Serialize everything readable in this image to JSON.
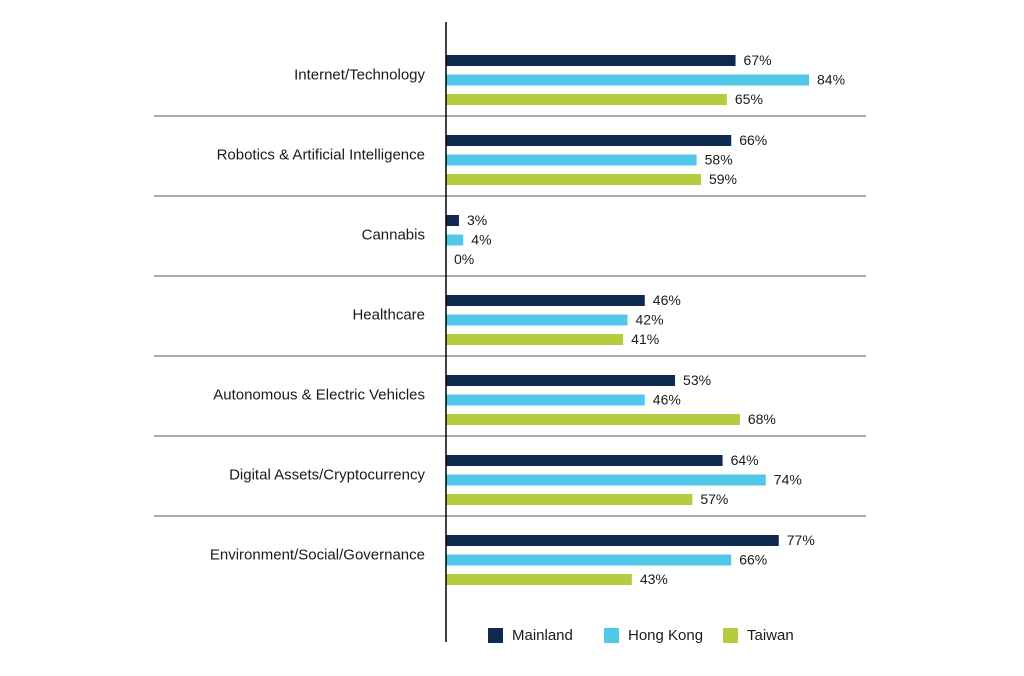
{
  "chart_data": {
    "type": "bar",
    "orientation": "horizontal",
    "categories": [
      "Internet/Technology",
      "Robotics & Artificial Intelligence",
      "Cannabis",
      "Healthcare",
      "Autonomous & Electric Vehicles",
      "Digital Assets/Cryptocurrency",
      "Environment/Social/Governance"
    ],
    "series": [
      {
        "name": "Mainland",
        "color": "#0f2a4e",
        "values": [
          67,
          66,
          3,
          46,
          53,
          64,
          77
        ]
      },
      {
        "name": "Hong Kong",
        "color": "#52c8e8",
        "values": [
          84,
          58,
          4,
          42,
          46,
          74,
          66
        ]
      },
      {
        "name": "Taiwan",
        "color": "#b5cc3e",
        "values": [
          65,
          59,
          0,
          41,
          68,
          57,
          43
        ]
      }
    ],
    "value_suffix": "%",
    "xlim": [
      0,
      100
    ],
    "legend": "bottom",
    "grid": false
  }
}
